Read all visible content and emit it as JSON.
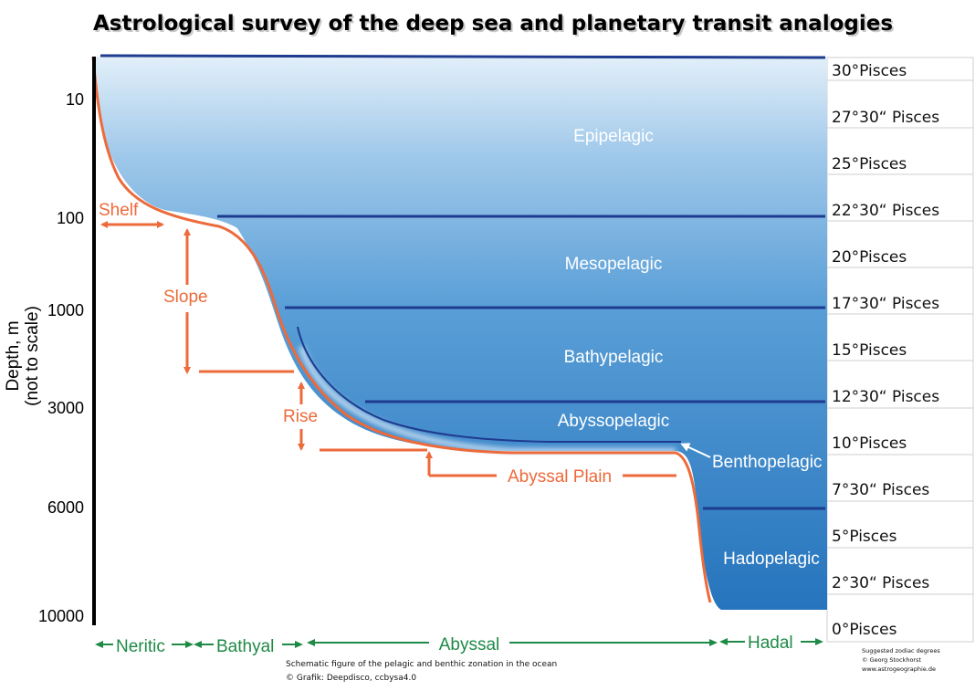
{
  "title": "Astrological survey of the deep sea and planetary transit analogies",
  "y_axis": {
    "label_line1": "Depth, m",
    "label_line2": "(not to scale)"
  },
  "depth_ticks": [
    "10",
    "100",
    "1000",
    "3000",
    "6000",
    "10000"
  ],
  "pelagic_zones": [
    "Epipelagic",
    "Mesopelagic",
    "Bathypelagic",
    "Abyssopelagic",
    "Hadopelagic"
  ],
  "benthopelagic_label": "Benthopelagic",
  "seafloor_labels": {
    "shelf": "Shelf",
    "slope": "Slope",
    "rise": "Rise",
    "abyssal_plain": "Abyssal Plain"
  },
  "horizontal_zones": [
    {
      "label": "Neritic"
    },
    {
      "label": "Bathyal"
    },
    {
      "label": "Abyssal"
    },
    {
      "label": "Hadal"
    }
  ],
  "zodiac_degrees": [
    "30°Pisces",
    "27°30“ Pisces",
    "25°Pisces",
    "22°30“ Pisces",
    "20°Pisces",
    "17°30“ Pisces",
    "15°Pisces",
    "12°30“ Pisces",
    "10°Pisces",
    "7°30“ Pisces",
    "5°Pisces",
    "2°30“ Pisces",
    "0°Pisces"
  ],
  "caption": {
    "line1": "Schematic figure of the pelagic and benthic zonation in the ocean",
    "line2": "© Grafik: Deepdisco, ccbysa4.0"
  },
  "credit": {
    "line1": "Suggested zodiac degrees",
    "line2": "© Georg Stockhorst",
    "line3": "www.astrogeographie.de"
  },
  "colors": {
    "ocean_top": "#dcecf8",
    "ocean_bottom": "#2c7cc1",
    "boundary_line": "#1f3b8f",
    "seafloor": "#ed6a3a",
    "green": "#1e8a46"
  }
}
